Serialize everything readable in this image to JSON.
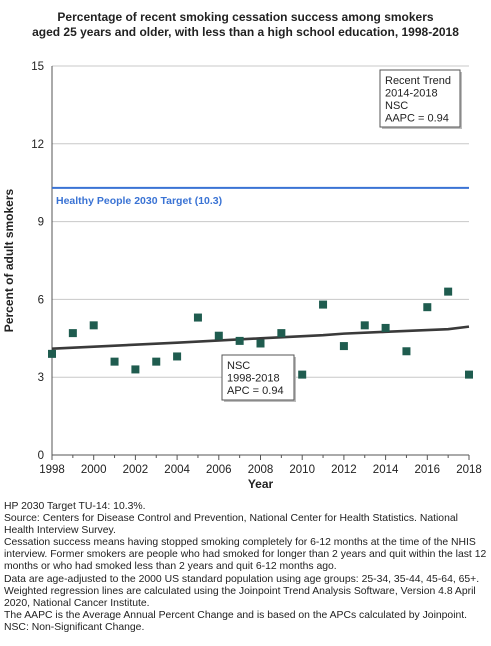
{
  "title_line1": "Percentage of recent smoking cessation success among  smokers",
  "title_line2": "aged 25 years and older, with less than a high school education, 1998-2018",
  "chart_data": {
    "type": "scatter",
    "xlabel": "Year",
    "ylabel": "Percent of adult smokers",
    "xlim": [
      1998,
      2018
    ],
    "ylim": [
      0,
      15
    ],
    "xticks": [
      "1998",
      "2000",
      "2002",
      "2004",
      "2006",
      "2008",
      "2010",
      "2012",
      "2014",
      "2016",
      "2018"
    ],
    "yticks": [
      "0",
      "3",
      "6",
      "9",
      "12",
      "15"
    ],
    "grid": "horizontal",
    "points": {
      "x": [
        1998,
        1999,
        2000,
        2001,
        2002,
        2003,
        2004,
        2005,
        2006,
        2007,
        2008,
        2009,
        2010,
        2011,
        2012,
        2013,
        2014,
        2015,
        2016,
        2017,
        2018
      ],
      "y": [
        3.9,
        4.7,
        5.0,
        3.6,
        3.3,
        3.6,
        3.8,
        5.3,
        4.6,
        4.4,
        4.3,
        4.7,
        3.1,
        5.8,
        4.2,
        5.0,
        4.9,
        4.0,
        5.7,
        6.3,
        3.1
      ],
      "color": "#1f5c4f"
    },
    "trend_line": {
      "x": [
        1998,
        2004,
        2008,
        2011,
        2012,
        2014,
        2017,
        2018
      ],
      "y": [
        4.1,
        4.33,
        4.5,
        4.62,
        4.68,
        4.75,
        4.85,
        4.95
      ],
      "color": "#3a3a3a"
    },
    "target_line": {
      "value": 10.3,
      "label": "Healthy People 2030 Target (10.3)",
      "color": "#3a73d4"
    },
    "annotations": [
      {
        "lines": [
          "Recent Trend",
          "2014-2018",
          "NSC",
          "AAPC =  0.94"
        ],
        "position": "top-right"
      },
      {
        "lines": [
          "NSC",
          "1998-2018",
          "APC =  0.94"
        ],
        "position": "lower-middle"
      }
    ]
  },
  "notes": [
    "HP 2030 Target TU-14: 10.3%.",
    "Source: Centers for Disease Control and Prevention, National Center for Health Statistics. National Health Interview Survey.",
    "Cessation success means having stopped smoking completely for 6-12 months at the time of the NHIS interview. Former smokers are people who had smoked for longer than 2 years and quit within the last 12 months or who had smoked less than 2 years and quit 6-12 months ago.",
    "Data are age-adjusted to the 2000 US standard population using age groups: 25-34, 35-44, 45-64, 65+.",
    "Weighted regression lines are calculated using the Joinpoint Trend Analysis Software, Version 4.8 April 2020, National Cancer Institute.",
    "The AAPC is the Average Annual Percent Change and is based on the APCs calculated by Joinpoint.",
    "NSC: Non-Significant Change."
  ]
}
